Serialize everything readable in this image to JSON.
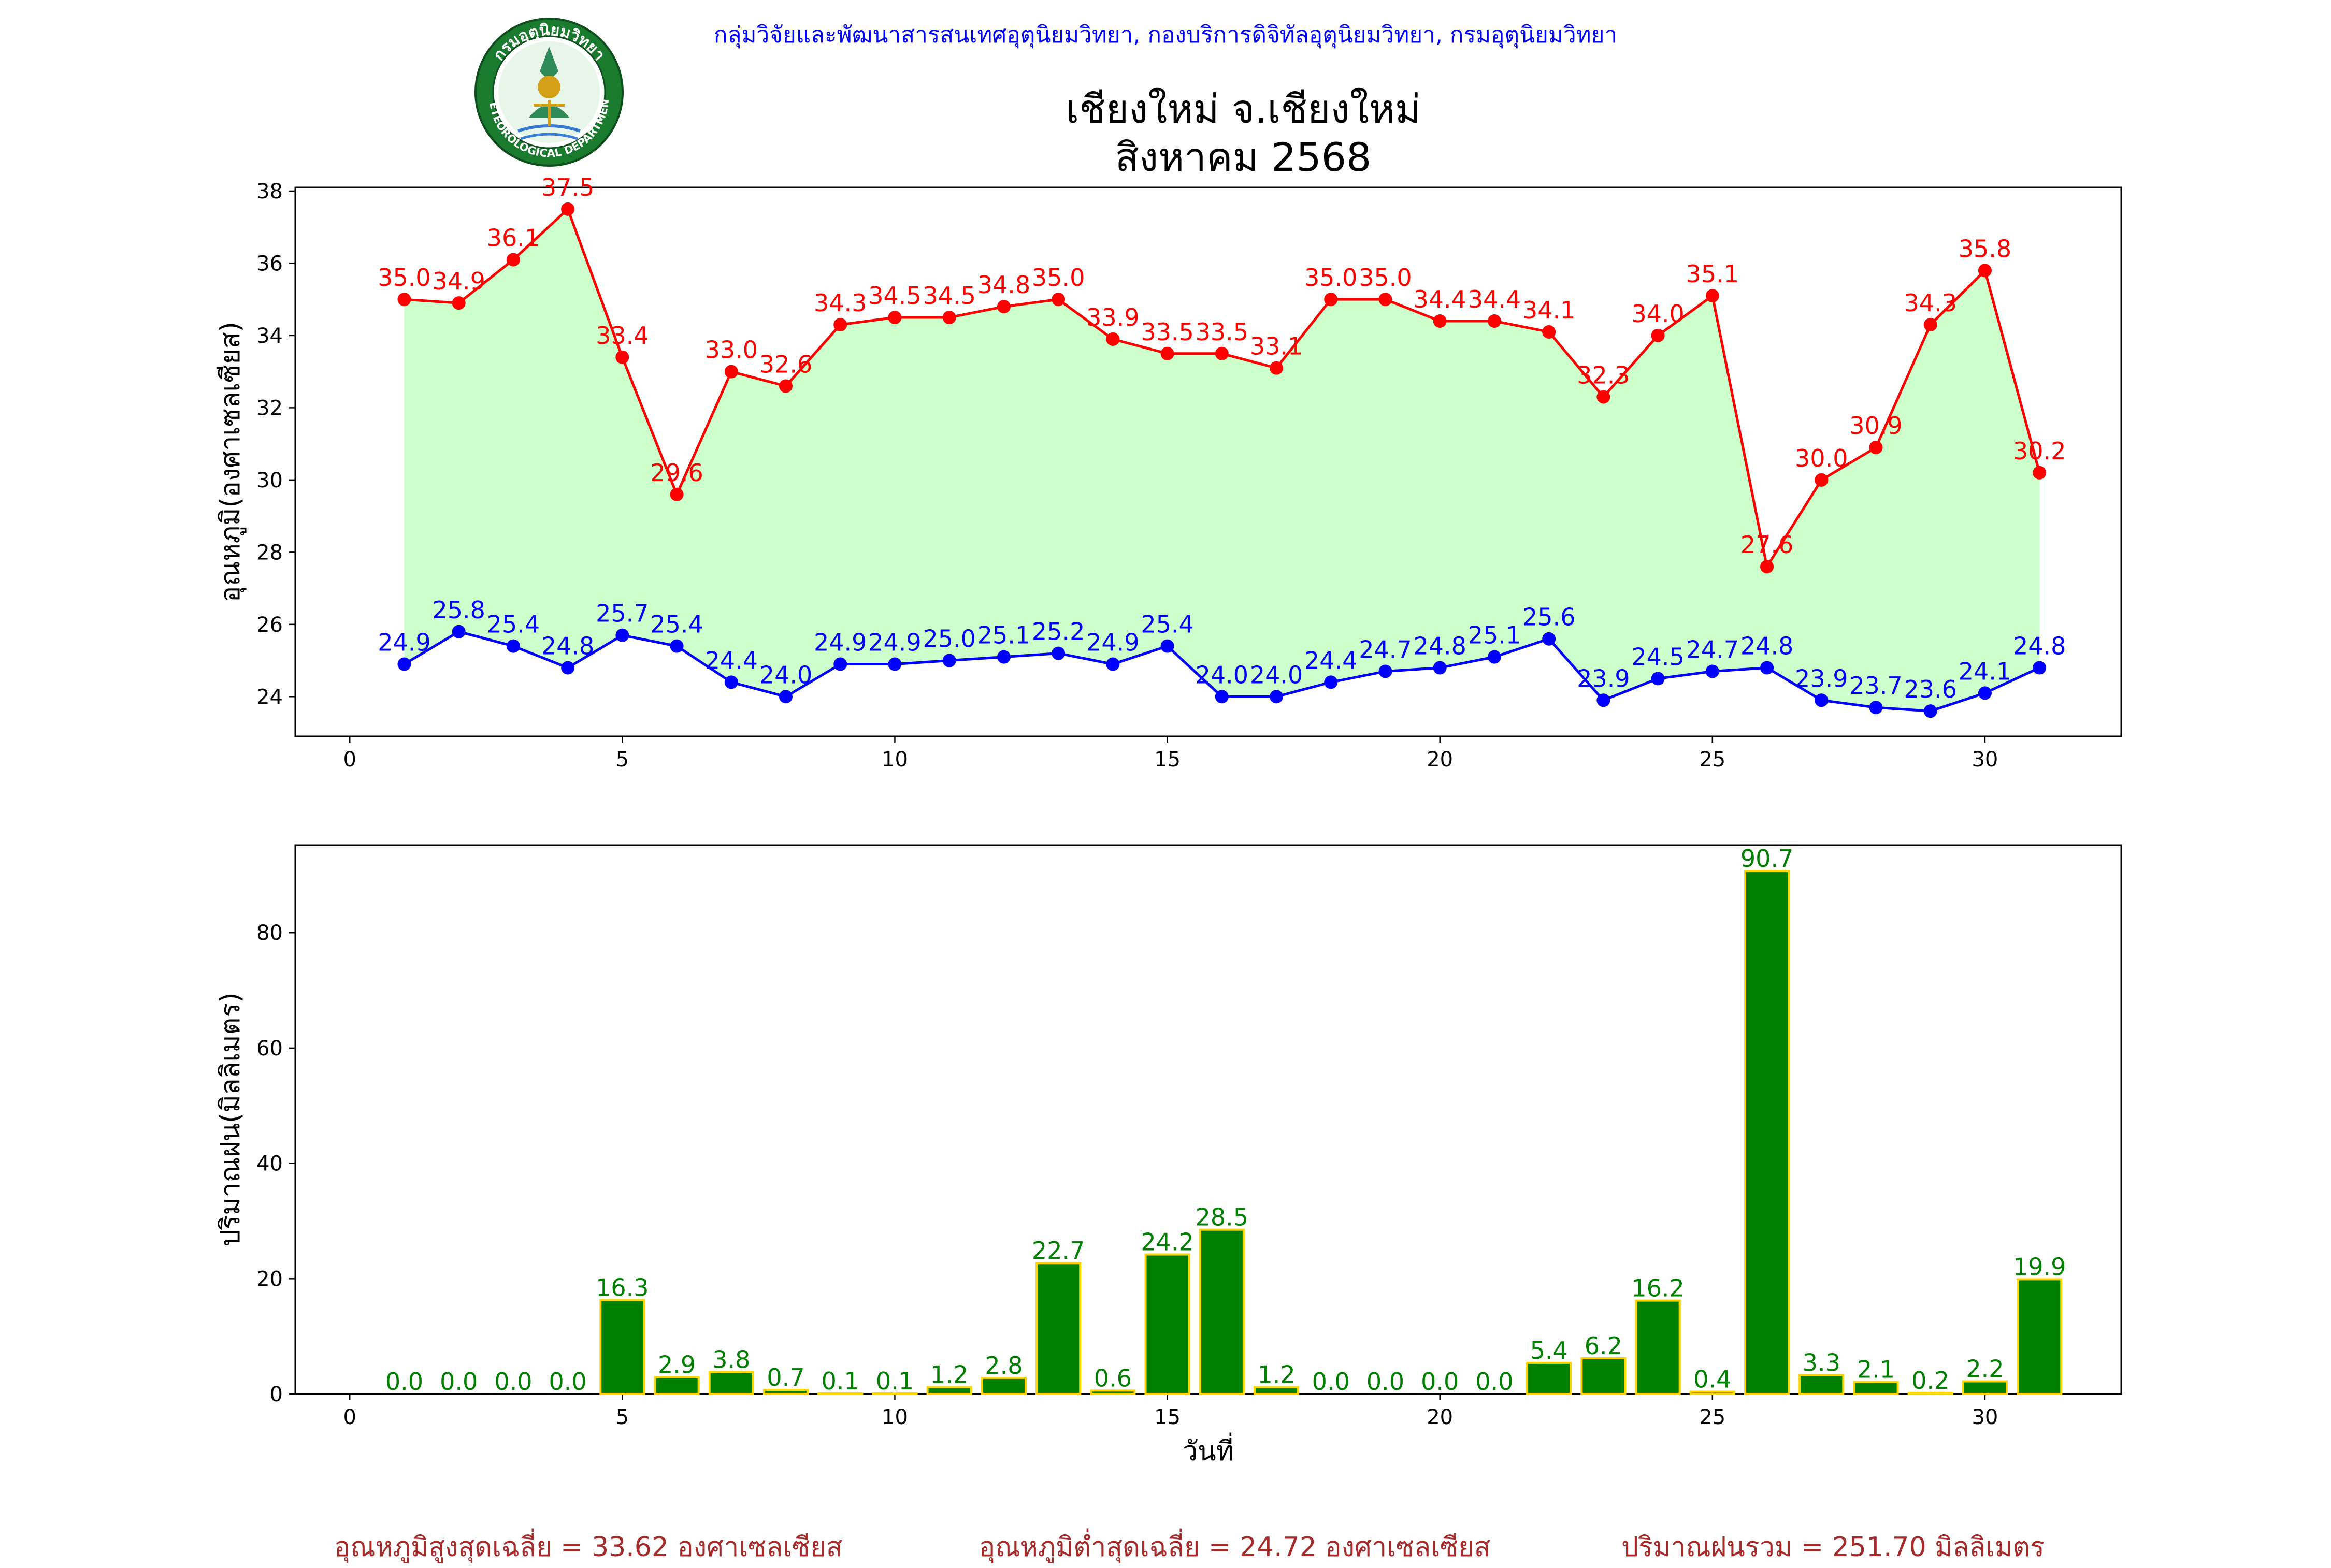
{
  "header": {
    "organization": "กลุ่มวิจัยและพัฒนาสารสนเทศอุตุนิยมวิทยา, กองบริการดิจิทัลอุตุนิยมวิทยา, กรมอุตุนิยมวิทยา",
    "title_line1": "เชียงใหม่ จ.เชียงใหม่",
    "title_line2": "สิงหาคม 2568",
    "logo_text_top": "กรมอุตุนิยมวิทยา",
    "logo_text_bottom": "METEOROLOGICAL DEPARTMENT"
  },
  "chart_data": [
    {
      "type": "line",
      "ylabel": "อุณหภูมิ(องศาเซลเซียส)",
      "xlim": [
        -1,
        32.5
      ],
      "ylim": [
        22.9,
        38.1
      ],
      "xticks": [
        0,
        5,
        10,
        15,
        20,
        25,
        30
      ],
      "yticks": [
        24,
        26,
        28,
        30,
        32,
        34,
        36,
        38
      ],
      "grid": false,
      "fill_between": "max-min",
      "x": [
        1,
        2,
        3,
        4,
        5,
        6,
        7,
        8,
        9,
        10,
        11,
        12,
        13,
        14,
        15,
        16,
        17,
        18,
        19,
        20,
        21,
        22,
        23,
        24,
        25,
        26,
        27,
        28,
        29,
        30,
        31
      ],
      "series": [
        {
          "values": [
            35.0,
            34.9,
            36.1,
            37.5,
            33.4,
            29.6,
            33.0,
            32.6,
            34.3,
            34.5,
            34.5,
            34.8,
            35.0,
            33.9,
            33.5,
            33.5,
            33.1,
            35.0,
            35.0,
            34.4,
            34.4,
            34.1,
            32.3,
            34.0,
            35.1,
            27.6,
            30.0,
            30.9,
            34.3,
            35.8,
            30.2
          ]
        },
        {
          "values": [
            24.9,
            25.8,
            25.4,
            24.8,
            25.7,
            25.4,
            24.4,
            24.0,
            24.9,
            24.9,
            25.0,
            25.1,
            25.2,
            24.9,
            25.4,
            24.0,
            24.0,
            24.4,
            24.7,
            24.8,
            25.1,
            25.6,
            23.9,
            24.5,
            24.7,
            24.8,
            23.9,
            23.7,
            23.6,
            24.1,
            24.8
          ]
        }
      ]
    },
    {
      "type": "bar",
      "ylabel": "ปริมาณฝน(มิลลิเมตร)",
      "xlabel": "วันที่",
      "xlim": [
        -1,
        32.5
      ],
      "ylim": [
        0,
        95.2
      ],
      "xticks": [
        0,
        5,
        10,
        15,
        20,
        25,
        30
      ],
      "yticks": [
        0,
        20,
        40,
        60,
        80
      ],
      "grid": false,
      "x": [
        1,
        2,
        3,
        4,
        5,
        6,
        7,
        8,
        9,
        10,
        11,
        12,
        13,
        14,
        15,
        16,
        17,
        18,
        19,
        20,
        21,
        22,
        23,
        24,
        25,
        26,
        27,
        28,
        29,
        30,
        31
      ],
      "values": [
        0.0,
        0.0,
        0.0,
        0.0,
        16.3,
        2.9,
        3.8,
        0.7,
        0.1,
        0.1,
        1.2,
        2.8,
        22.7,
        0.6,
        24.2,
        28.5,
        1.2,
        0.0,
        0.0,
        0.0,
        0.0,
        5.4,
        6.2,
        16.2,
        0.4,
        90.7,
        3.3,
        2.1,
        0.2,
        2.2,
        19.9
      ]
    }
  ],
  "colors": {
    "max_line": "#ff0000",
    "min_line": "#0000ff",
    "fill": "#ccffcc",
    "bar_fill": "#008000",
    "bar_edge": "#ffd700",
    "bar_label": "#008000",
    "footer": "#a52a2a",
    "header_org": "#0000ff"
  },
  "footer": {
    "avg_max": "อุณหภูมิสูงสุดเฉลี่ย = 33.62 องศาเซลเซียส",
    "avg_min": "อุณหภูมิต่ำสุดเฉลี่ย = 24.72 องศาเซลเซียส",
    "total_rain": "ปริมาณฝนรวม = 251.70 มิลลิเมตร"
  }
}
